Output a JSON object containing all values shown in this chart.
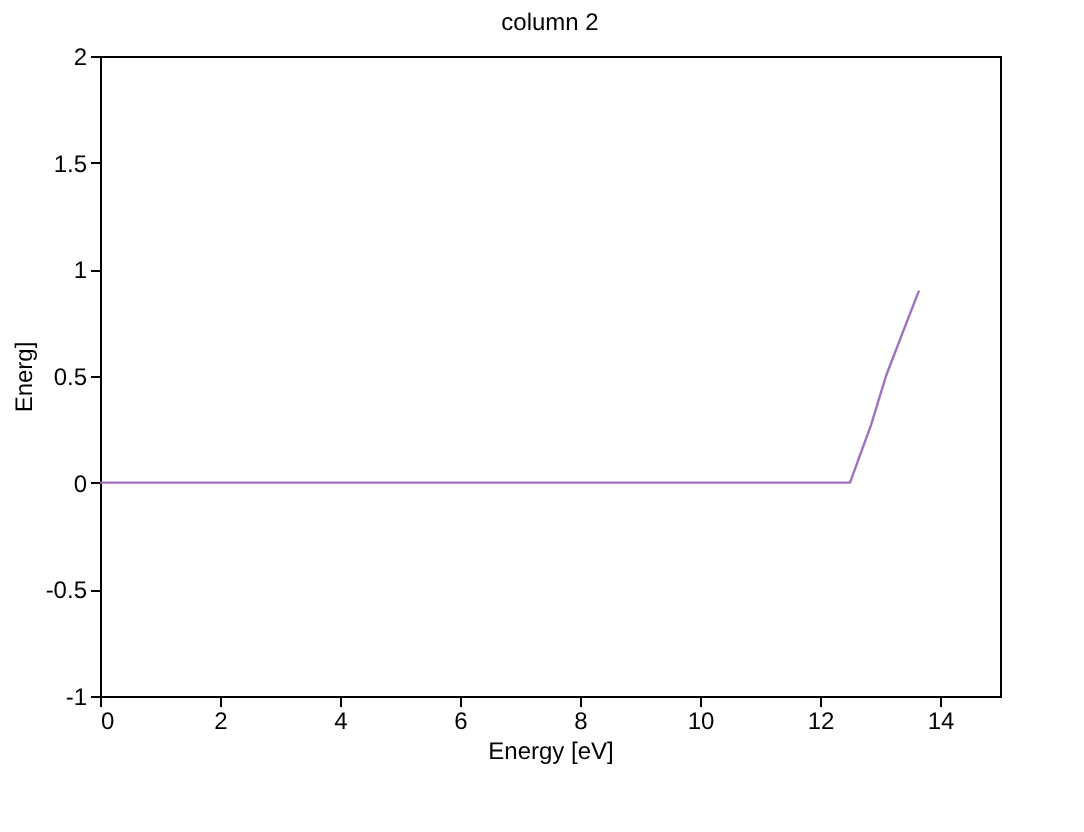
{
  "chart_data": {
    "type": "line",
    "title": "column 2",
    "xlabel": "Energy [eV]",
    "ylabel": "Energ]",
    "series": [
      {
        "color": "#a070c0",
        "x": [
          0,
          12.5,
          12.85,
          13.1,
          13.4,
          13.65
        ],
        "values": [
          0,
          0,
          0.27,
          0.5,
          0.72,
          0.9
        ]
      }
    ],
    "xlim": [
      0,
      15
    ],
    "xticks": [
      0,
      2,
      4,
      6,
      8,
      10,
      12,
      14
    ],
    "ylim": [
      -1,
      2
    ],
    "yticks": [
      -1,
      -0.5,
      0,
      0.5,
      1,
      1.5,
      2
    ],
    "grid": false,
    "marker": "none",
    "line_style": "solid"
  }
}
